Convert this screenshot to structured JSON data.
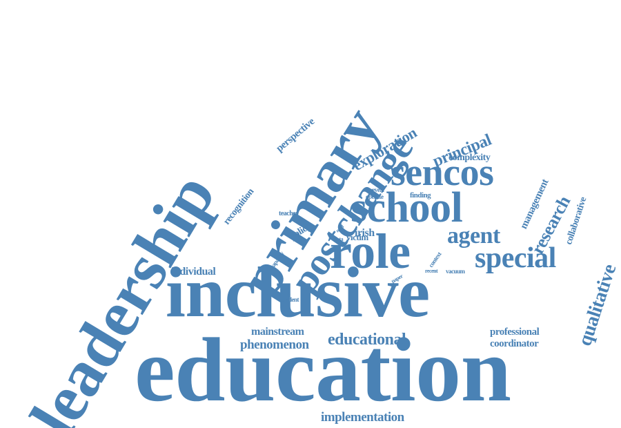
{
  "word_color": "#4a82b5",
  "background_color": "#ffffff",
  "words": {
    "education": "education",
    "inclusive": "inclusive",
    "leadership": "leadership",
    "primary": "primary",
    "postchange": "postchange",
    "role": "role",
    "school": "school",
    "sencos": "sencos",
    "special": "special",
    "qualitative": "qualitative",
    "agent": "agent",
    "research": "research",
    "principal": "principal",
    "educational": "educational",
    "implementation": "implementation",
    "phenomenon": "phenomenon",
    "mainstream": "mainstream",
    "coordinator": "coordinator",
    "professional": "professional",
    "individual": "individual",
    "exploration": "exploration",
    "management": "management",
    "collaborative": "collaborative",
    "perspective": "perspective",
    "recognition": "recognition",
    "complexity": "complexity",
    "irish": "irish",
    "victim": "victim",
    "policy": "policy",
    "teacher": "teacher",
    "finding": "finding",
    "operate": "operate",
    "reveal": "reveal",
    "student": "student",
    "capacity": "capacity",
    "data": "data",
    "need": "need",
    "context": "context",
    "paper": "paper",
    "recent": "recent",
    "vacuum": "vacuum"
  }
}
